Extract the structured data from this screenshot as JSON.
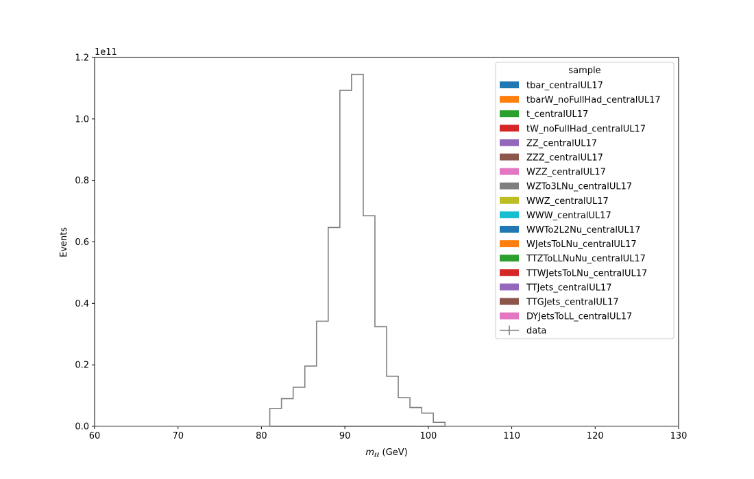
{
  "chart_data": {
    "type": "histogram",
    "title": "",
    "xlabel_symbol": "m",
    "xlabel_subscript": "ℓℓ",
    "xlabel_unit": " (GeV)",
    "ylabel": "Events",
    "offset_text": "1e11",
    "xlim": [
      60,
      130
    ],
    "ylim": [
      0,
      1.2
    ],
    "y_scale": 100000000000.0,
    "x_ticks": [
      60,
      70,
      80,
      90,
      100,
      110,
      120,
      130
    ],
    "y_ticks": [
      0.0,
      0.2,
      0.4,
      0.6,
      0.8,
      1.0,
      1.2
    ],
    "y_tick_labels": [
      "0.0",
      "0.2",
      "0.4",
      "0.6",
      "0.8",
      "1.0",
      "1.2"
    ],
    "grid": false,
    "legend_position": "top-right",
    "legend_title": "sample",
    "bin_edges": [
      60,
      61.4,
      62.8,
      64.2,
      65.6,
      67,
      68.4,
      69.8,
      71.2,
      72.6,
      74,
      75.4,
      76.8,
      78.2,
      79.6,
      81,
      82.4,
      83.8,
      85.2,
      86.6,
      88,
      89.4,
      90.8,
      92.2,
      93.6,
      95,
      96.4,
      97.8,
      99.2,
      100.6,
      102,
      103.4,
      104.8,
      106.2,
      107.6,
      109,
      110.4,
      111.8,
      113.2,
      114.6,
      116,
      117.4,
      118.8,
      120.2,
      121.6,
      123,
      124.4,
      125.8,
      127.2,
      128.6,
      130
    ],
    "series": [
      {
        "name": "data",
        "color": "#7f7f7f",
        "style": "step",
        "values": [
          0,
          0,
          0,
          0,
          0,
          0,
          0,
          0,
          0,
          0,
          0,
          0,
          0,
          0,
          0,
          0.058,
          0.09,
          0.127,
          0.196,
          0.342,
          0.647,
          1.093,
          1.145,
          0.685,
          0.324,
          0.163,
          0.093,
          0.061,
          0.043,
          0.013,
          0.0,
          0,
          0,
          0,
          0,
          0,
          0,
          0,
          0,
          0,
          0,
          0,
          0,
          0,
          0,
          0,
          0,
          0,
          0,
          0
        ]
      }
    ],
    "legend_entries": [
      {
        "label": "tbar_centralUL17",
        "color": "#1f77b4",
        "kind": "patch"
      },
      {
        "label": "tbarW_noFullHad_centralUL17",
        "color": "#ff7f0e",
        "kind": "patch"
      },
      {
        "label": "t_centralUL17",
        "color": "#2ca02c",
        "kind": "patch"
      },
      {
        "label": "tW_noFullHad_centralUL17",
        "color": "#d62728",
        "kind": "patch"
      },
      {
        "label": "ZZ_centralUL17",
        "color": "#9467bd",
        "kind": "patch"
      },
      {
        "label": "ZZZ_centralUL17",
        "color": "#8c564b",
        "kind": "patch"
      },
      {
        "label": "WZZ_centralUL17",
        "color": "#e377c2",
        "kind": "patch"
      },
      {
        "label": "WZTo3LNu_centralUL17",
        "color": "#7f7f7f",
        "kind": "patch"
      },
      {
        "label": "WWZ_centralUL17",
        "color": "#bcbd22",
        "kind": "patch"
      },
      {
        "label": "WWW_centralUL17",
        "color": "#17becf",
        "kind": "patch"
      },
      {
        "label": "WWTo2L2Nu_centralUL17",
        "color": "#1f77b4",
        "kind": "patch"
      },
      {
        "label": "WJetsToLNu_centralUL17",
        "color": "#ff7f0e",
        "kind": "patch"
      },
      {
        "label": "TTZToLLNuNu_centralUL17",
        "color": "#2ca02c",
        "kind": "patch"
      },
      {
        "label": "TTWJetsToLNu_centralUL17",
        "color": "#d62728",
        "kind": "patch"
      },
      {
        "label": "TTJets_centralUL17",
        "color": "#9467bd",
        "kind": "patch"
      },
      {
        "label": "TTGJets_centralUL17",
        "color": "#8c564b",
        "kind": "patch"
      },
      {
        "label": "DYJetsToLL_centralUL17",
        "color": "#e377c2",
        "kind": "patch"
      },
      {
        "label": "data",
        "color": "#7f7f7f",
        "kind": "errorbar"
      }
    ]
  }
}
